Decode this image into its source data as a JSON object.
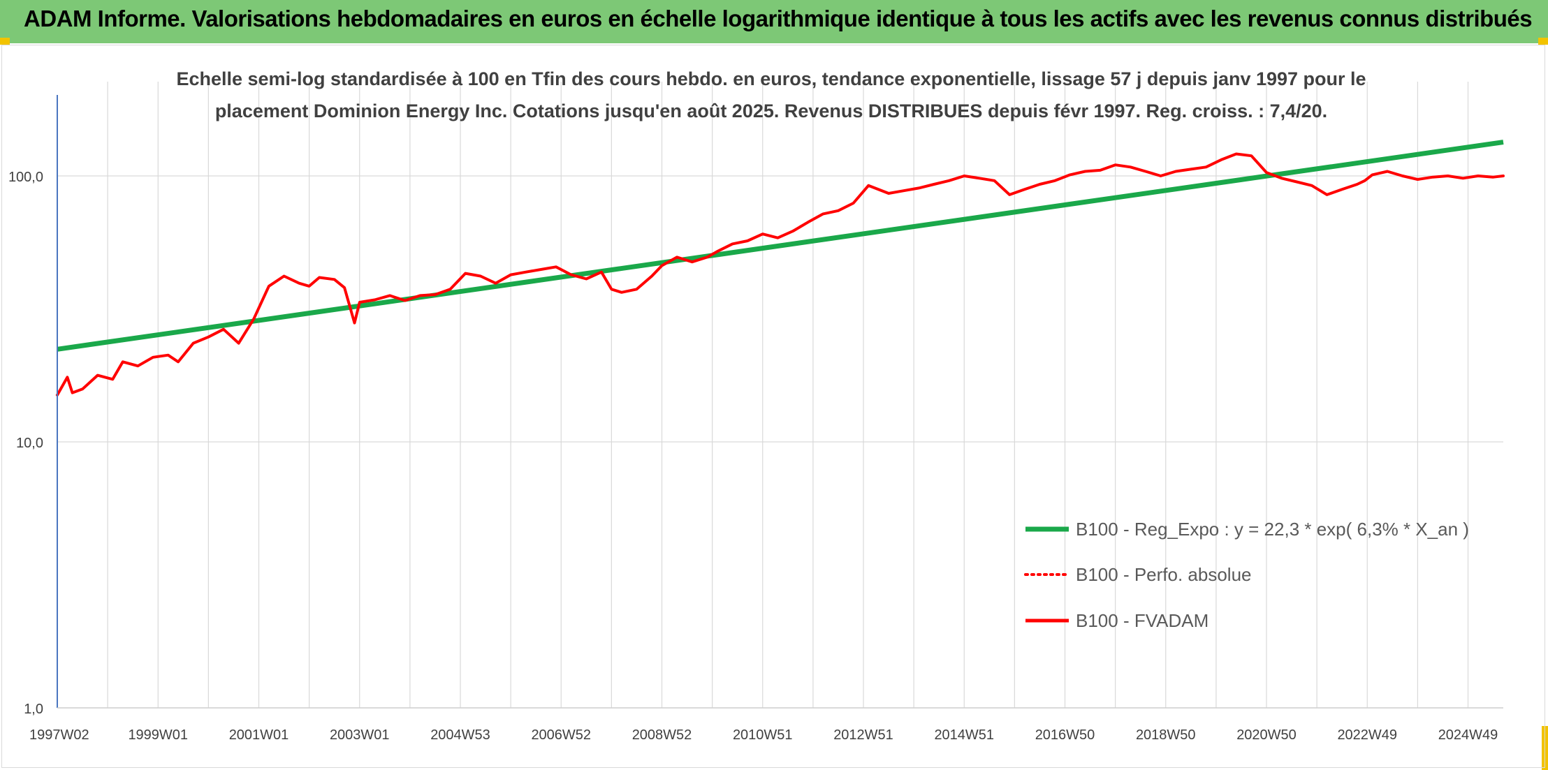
{
  "header": {
    "title": "ADAM Informe. Valorisations hebdomadaires en euros en échelle logarithmique identique à tous les actifs avec les revenus connus distribués"
  },
  "colors": {
    "banner": "#7dc876",
    "trend": "#1aa84a",
    "fvadam": "#ff0000",
    "perfo": "#ff0000",
    "axis": "#4a76c0",
    "grid": "#d9d9d9",
    "corner": "#f2c300"
  },
  "chart_data": {
    "type": "line",
    "title_lines": [
      "Echelle semi-log standardisée à 100 en Tfin des cours hebdo. en euros, tendance exponentielle, lissage 57 j depuis janv 1997 pour le",
      "placement Dominion Energy Inc. Cotations jusqu'en août 2025. Revenus DISTRIBUES depuis févr 1997. Reg. croiss. : 7,4/20."
    ],
    "y_scale": "log",
    "ylim": [
      1,
      200
    ],
    "y_ticks": [
      {
        "value": 1,
        "label": "1,0"
      },
      {
        "value": 10,
        "label": "10,0"
      },
      {
        "value": 100,
        "label": "100,0"
      }
    ],
    "xlim": [
      1997.0,
      2025.7
    ],
    "x_ticks": [
      {
        "x": 1997.0,
        "label": "1997W02"
      },
      {
        "x": 1999.0,
        "label": "1999W01"
      },
      {
        "x": 2001.0,
        "label": "2001W01"
      },
      {
        "x": 2003.0,
        "label": "2003W01"
      },
      {
        "x": 2005.0,
        "label": "2004W53"
      },
      {
        "x": 2007.0,
        "label": "2006W52"
      },
      {
        "x": 2009.0,
        "label": "2008W52"
      },
      {
        "x": 2011.0,
        "label": "2010W51"
      },
      {
        "x": 2013.0,
        "label": "2012W51"
      },
      {
        "x": 2015.0,
        "label": "2014W51"
      },
      {
        "x": 2017.0,
        "label": "2016W50"
      },
      {
        "x": 2019.0,
        "label": "2018W50"
      },
      {
        "x": 2021.0,
        "label": "2020W50"
      },
      {
        "x": 2023.0,
        "label": "2022W49"
      },
      {
        "x": 2025.0,
        "label": "2024W49"
      }
    ],
    "legend_position": "bottom-right",
    "series": [
      {
        "name": "B100 - Reg_Expo : y = 22,3 * exp( 6,3% *  X_an )",
        "style": "solid-thick",
        "x": [
          1997.0,
          2025.7
        ],
        "y": [
          22.3,
          134
        ]
      },
      {
        "name": "B100 - Perfo. absolue",
        "style": "dotted",
        "x": [],
        "y": []
      },
      {
        "name": "B100 - FVADAM",
        "style": "solid",
        "x": [
          1997.0,
          1997.2,
          1997.3,
          1997.5,
          1997.8,
          1998.1,
          1998.3,
          1998.6,
          1998.9,
          1999.2,
          1999.4,
          1999.7,
          2000.0,
          2000.3,
          2000.6,
          2000.9,
          2001.2,
          2001.5,
          2001.8,
          2002.0,
          2002.2,
          2002.5,
          2002.7,
          2002.9,
          2003.0,
          2003.3,
          2003.6,
          2003.9,
          2004.2,
          2004.5,
          2004.8,
          2005.1,
          2005.4,
          2005.7,
          2006.0,
          2006.3,
          2006.6,
          2006.9,
          2007.2,
          2007.5,
          2007.8,
          2008.0,
          2008.2,
          2008.5,
          2008.8,
          2009.0,
          2009.3,
          2009.6,
          2009.9,
          2010.1,
          2010.4,
          2010.7,
          2011.0,
          2011.3,
          2011.6,
          2011.9,
          2012.2,
          2012.5,
          2012.8,
          2013.1,
          2013.5,
          2013.8,
          2014.1,
          2014.4,
          2014.7,
          2015.0,
          2015.3,
          2015.6,
          2015.9,
          2016.2,
          2016.5,
          2016.8,
          2017.1,
          2017.4,
          2017.7,
          2018.0,
          2018.3,
          2018.6,
          2018.9,
          2019.2,
          2019.5,
          2019.8,
          2020.1,
          2020.4,
          2020.7,
          2021.0,
          2021.3,
          2021.6,
          2021.9,
          2022.2,
          2022.5,
          2022.8,
          2022.95,
          2023.1,
          2023.4,
          2023.7,
          2024.0,
          2024.3,
          2024.6,
          2024.9,
          2025.2,
          2025.5,
          2025.7
        ],
        "y": [
          15,
          17.5,
          15.3,
          15.8,
          17.8,
          17.2,
          20,
          19.3,
          20.8,
          21.2,
          20,
          23.5,
          24.8,
          26.5,
          23.5,
          29,
          38.5,
          42,
          39.5,
          38.5,
          41.5,
          40.8,
          38,
          28,
          33.5,
          34.2,
          35.5,
          34,
          35.5,
          35.8,
          37.5,
          43,
          42,
          39.5,
          42.5,
          43.5,
          44.5,
          45.5,
          42.5,
          41,
          43.5,
          37.5,
          36.5,
          37.5,
          42,
          46,
          49.5,
          47.5,
          49.5,
          52,
          55.5,
          57,
          60.5,
          58.5,
          62,
          67,
          72,
          74,
          79,
          92,
          86,
          88,
          90,
          93,
          96,
          100,
          98,
          96,
          85,
          89,
          93,
          96,
          101,
          104,
          105,
          110,
          108,
          104,
          100,
          104,
          106,
          108,
          115,
          121,
          119,
          103,
          98,
          95,
          92,
          85,
          89,
          93,
          96,
          101,
          104,
          100,
          97,
          99,
          100,
          98,
          100,
          99,
          100
        ]
      }
    ]
  }
}
